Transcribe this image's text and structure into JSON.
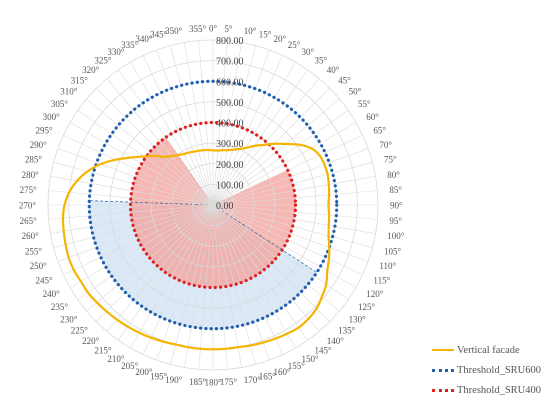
{
  "chart_data": {
    "type": "radar",
    "angle_unit": "deg",
    "angle_step": 5,
    "angle_labels": [
      "0°",
      "5°",
      "10°",
      "15°",
      "20°",
      "25°",
      "30°",
      "35°",
      "40°",
      "45°",
      "50°",
      "55°",
      "60°",
      "65°",
      "70°",
      "75°",
      "80°",
      "85°",
      "90°",
      "95°",
      "100°",
      "105°",
      "110°",
      "115°",
      "120°",
      "125°",
      "130°",
      "135°",
      "140°",
      "145°",
      "150°",
      "155°",
      "160°",
      "165°",
      "170°",
      "175°",
      "180°",
      "185°",
      "190°",
      "195°",
      "200°",
      "205°",
      "210°",
      "215°",
      "220°",
      "225°",
      "230°",
      "235°",
      "240°",
      "245°",
      "250°",
      "255°",
      "260°",
      "265°",
      "270°",
      "275°",
      "280°",
      "285°",
      "290°",
      "295°",
      "300°",
      "305°",
      "310°",
      "315°",
      "320°",
      "325°",
      "330°",
      "335°",
      "340°",
      "345°",
      "350°",
      "355°"
    ],
    "radial_ticks": [
      "0.00",
      "100.00",
      "200.00",
      "300.00",
      "400.00",
      "500.00",
      "600.00",
      "700.00",
      "800.00"
    ],
    "rlim": [
      0,
      800
    ],
    "grid": true,
    "legend_position": "bottom-right",
    "series": [
      {
        "name": "Vertical facade",
        "color": "#f4b400",
        "style": "solid",
        "values": [
          265,
          265,
          270,
          275,
          285,
          300,
          320,
          350,
          380,
          420,
          460,
          510,
          550,
          570,
          575,
          575,
          570,
          565,
          560,
          565,
          570,
          580,
          600,
          620,
          640,
          670,
          690,
          710,
          720,
          725,
          720,
          715,
          710,
          705,
          700,
          700,
          700,
          700,
          700,
          700,
          705,
          710,
          715,
          720,
          725,
          730,
          735,
          740,
          740,
          745,
          745,
          740,
          735,
          730,
          720,
          700,
          670,
          630,
          580,
          520,
          460,
          410,
          370,
          330,
          310,
          295,
          285,
          280,
          275,
          272,
          270,
          268
        ]
      },
      {
        "name": "Threshold_SRU600",
        "color": "#1f5fb0",
        "style": "dotted",
        "values": [
          600,
          600,
          600,
          600,
          600,
          600,
          600,
          600,
          600,
          600,
          600,
          600,
          600,
          600,
          600,
          600,
          600,
          600,
          600,
          600,
          600,
          600,
          600,
          600,
          600,
          600,
          600,
          600,
          600,
          600,
          600,
          600,
          600,
          600,
          600,
          600,
          600,
          600,
          600,
          600,
          600,
          600,
          600,
          600,
          600,
          600,
          600,
          600,
          600,
          600,
          600,
          600,
          600,
          600,
          600,
          600,
          600,
          600,
          600,
          600,
          600,
          600,
          600,
          600,
          600,
          600,
          600,
          600,
          600,
          600,
          600,
          600
        ]
      },
      {
        "name": "Threshold_SRU400",
        "color": "#e02020",
        "style": "dotted",
        "values": [
          400,
          400,
          400,
          400,
          400,
          400,
          400,
          400,
          400,
          400,
          400,
          400,
          400,
          400,
          400,
          400,
          400,
          400,
          400,
          400,
          400,
          400,
          400,
          400,
          400,
          400,
          400,
          400,
          400,
          400,
          400,
          400,
          400,
          400,
          400,
          400,
          400,
          400,
          400,
          400,
          400,
          400,
          400,
          400,
          400,
          400,
          400,
          400,
          400,
          400,
          400,
          400,
          400,
          400,
          400,
          400,
          400,
          400,
          400,
          400,
          400,
          400,
          400,
          400,
          400,
          400,
          400,
          400,
          400,
          400,
          400,
          400
        ]
      }
    ],
    "shaded_sectors": [
      {
        "from_deg": 65,
        "to_deg": 325,
        "radius": 400,
        "color": "#f4a09a"
      },
      {
        "from_deg": 123,
        "to_deg": 272,
        "radius": 600,
        "color": "#cfe0f3"
      }
    ]
  }
}
